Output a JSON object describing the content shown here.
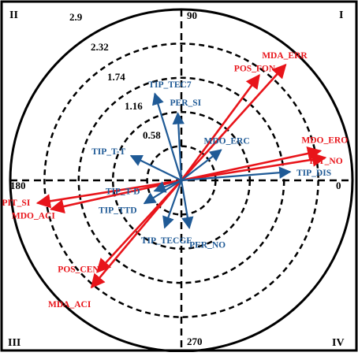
{
  "chart_data": {
    "type": "polar-biplot",
    "angle_unit": "degrees",
    "radial_unit": "data",
    "grid": true,
    "quadrant_labels": [
      "I",
      "II",
      "III",
      "IV"
    ],
    "angle_ticks": [
      {
        "value": 0,
        "label": "0"
      },
      {
        "value": 90,
        "label": "90"
      },
      {
        "value": 180,
        "label": "180"
      },
      {
        "value": 270,
        "label": "270"
      }
    ],
    "radial_ticks": [
      0.58,
      1.16,
      1.74,
      2.32,
      2.9
    ],
    "radial_tick_labels": [
      "0.58",
      "1.16",
      "1.74",
      "2.32",
      "2.9"
    ],
    "rmax": 2.9,
    "colors": {
      "red_series": "#e8141a",
      "blue_series": "#1f5a96",
      "axis": "#000000"
    },
    "series": [
      {
        "color": "red",
        "vectors": [
          {
            "label": "MDA_ERR",
            "angle": 48.0,
            "length": 2.64
          },
          {
            "label": "POS_FON",
            "angle": 53.5,
            "length": 2.22
          },
          {
            "label": "MDO_ERO",
            "angle": 12.0,
            "length": 2.41
          },
          {
            "label": "PIT_NO",
            "angle": 9.0,
            "length": 2.47
          },
          {
            "label": "PIT_SI",
            "angle": 189.0,
            "length": 2.47
          },
          {
            "label": "MDO_ACI",
            "angle": 192.5,
            "length": 2.26
          },
          {
            "label": "POS_CEN",
            "angle": 227.5,
            "length": 2.11
          },
          {
            "label": "MDA_ACI",
            "angle": 230.0,
            "length": 2.37
          }
        ]
      },
      {
        "color": "blue",
        "vectors": [
          {
            "label": "TIP_TEC7",
            "angle": 107.0,
            "length": 1.54
          },
          {
            "label": "PER_SI",
            "angle": 93.0,
            "length": 1.14
          },
          {
            "label": "TIP_T-T",
            "angle": 154.0,
            "length": 0.95
          },
          {
            "label": "MDO_ERC",
            "angle": 37.5,
            "length": 0.85
          },
          {
            "label": "TIP_DIS",
            "angle": 4.5,
            "length": 1.85
          },
          {
            "label": "TIP_T-D",
            "angle": 201.5,
            "length": 0.49
          },
          {
            "label": "TIP_TTD",
            "angle": 212.0,
            "length": 0.74
          },
          {
            "label": "TIP_TECGF",
            "angle": 250.5,
            "length": 0.85
          },
          {
            "label": "PER_NO",
            "angle": 279.5,
            "length": 0.82
          }
        ]
      }
    ]
  }
}
